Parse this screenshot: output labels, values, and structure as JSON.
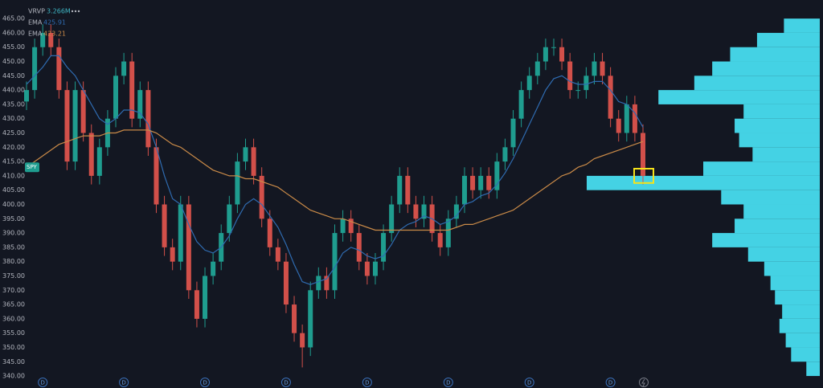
{
  "chart_data": {
    "type": "candlestick",
    "symbol": "SPY",
    "legend": [
      {
        "name": "VRVP",
        "value_label": "3.266M"
      },
      {
        "name": "EMA",
        "value_label": "425.91"
      },
      {
        "name": "EMA",
        "value_label": "423.21"
      }
    ],
    "up_color": "#1f9d8f",
    "down_color": "#d2504a",
    "ohlc": [
      [
        436,
        443,
        433,
        440
      ],
      [
        440,
        458,
        437,
        455
      ],
      [
        455,
        463,
        452,
        460
      ],
      [
        460,
        463,
        452,
        455
      ],
      [
        455,
        458,
        437,
        440
      ],
      [
        440,
        443,
        412,
        415
      ],
      [
        415,
        443,
        412,
        440
      ],
      [
        440,
        443,
        422,
        425
      ],
      [
        425,
        428,
        407,
        410
      ],
      [
        410,
        423,
        407,
        420
      ],
      [
        420,
        433,
        417,
        430
      ],
      [
        430,
        448,
        427,
        445
      ],
      [
        445,
        453,
        442,
        450
      ],
      [
        450,
        453,
        427,
        430
      ],
      [
        430,
        443,
        427,
        440
      ],
      [
        440,
        443,
        417,
        420
      ],
      [
        420,
        423,
        397,
        400
      ],
      [
        400,
        403,
        382,
        385
      ],
      [
        385,
        388,
        377,
        380
      ],
      [
        380,
        403,
        377,
        400
      ],
      [
        400,
        403,
        367,
        370
      ],
      [
        370,
        373,
        357,
        360
      ],
      [
        360,
        378,
        357,
        375
      ],
      [
        375,
        383,
        372,
        380
      ],
      [
        380,
        393,
        377,
        390
      ],
      [
        390,
        403,
        387,
        400
      ],
      [
        400,
        418,
        397,
        415
      ],
      [
        415,
        423,
        412,
        420
      ],
      [
        420,
        423,
        407,
        410
      ],
      [
        410,
        413,
        392,
        395
      ],
      [
        395,
        398,
        382,
        385
      ],
      [
        385,
        388,
        377,
        380
      ],
      [
        380,
        383,
        362,
        365
      ],
      [
        365,
        368,
        352,
        355
      ],
      [
        355,
        358,
        343,
        350
      ],
      [
        350,
        373,
        347,
        370
      ],
      [
        370,
        378,
        367,
        375
      ],
      [
        375,
        378,
        367,
        370
      ],
      [
        370,
        393,
        367,
        390
      ],
      [
        390,
        398,
        387,
        395
      ],
      [
        395,
        398,
        387,
        390
      ],
      [
        390,
        393,
        377,
        380
      ],
      [
        380,
        383,
        372,
        375
      ],
      [
        375,
        383,
        372,
        380
      ],
      [
        380,
        393,
        377,
        390
      ],
      [
        390,
        403,
        387,
        400
      ],
      [
        400,
        413,
        397,
        410
      ],
      [
        410,
        413,
        397,
        400
      ],
      [
        400,
        403,
        392,
        395
      ],
      [
        395,
        403,
        392,
        400
      ],
      [
        400,
        403,
        387,
        390
      ],
      [
        390,
        393,
        382,
        385
      ],
      [
        385,
        398,
        382,
        395
      ],
      [
        395,
        403,
        392,
        400
      ],
      [
        400,
        413,
        397,
        410
      ],
      [
        410,
        413,
        402,
        405
      ],
      [
        405,
        413,
        402,
        410
      ],
      [
        410,
        413,
        402,
        405
      ],
      [
        405,
        418,
        402,
        415
      ],
      [
        415,
        423,
        412,
        420
      ],
      [
        420,
        433,
        417,
        430
      ],
      [
        430,
        443,
        427,
        440
      ],
      [
        440,
        448,
        437,
        445
      ],
      [
        445,
        453,
        442,
        450
      ],
      [
        450,
        458,
        447,
        455
      ],
      [
        455,
        458,
        452,
        455
      ],
      [
        455,
        458,
        447,
        450
      ],
      [
        450,
        453,
        437,
        440
      ],
      [
        440,
        443,
        437,
        440
      ],
      [
        440,
        448,
        437,
        445
      ],
      [
        445,
        453,
        442,
        450
      ],
      [
        450,
        453,
        442,
        445
      ],
      [
        445,
        448,
        427,
        430
      ],
      [
        430,
        433,
        422,
        425
      ],
      [
        425,
        438,
        422,
        435
      ],
      [
        435,
        438,
        422,
        425
      ],
      [
        425,
        428,
        407,
        410
      ]
    ],
    "series": [
      {
        "name": "EMA",
        "color": "#2f6bb0",
        "values": [
          442,
          445,
          448,
          452,
          452,
          448,
          445,
          440,
          435,
          430,
          428,
          430,
          433,
          433,
          432,
          428,
          420,
          410,
          402,
          400,
          393,
          387,
          384,
          383,
          385,
          389,
          395,
          400,
          402,
          400,
          396,
          392,
          386,
          379,
          373,
          372,
          373,
          374,
          378,
          383,
          385,
          384,
          382,
          381,
          382,
          386,
          391,
          393,
          394,
          396,
          395,
          393,
          394,
          396,
          400,
          401,
          403,
          404,
          407,
          411,
          416,
          422,
          428,
          434,
          440,
          444,
          445,
          443,
          442,
          442,
          443,
          443,
          440,
          436,
          435,
          432,
          427
        ]
      },
      {
        "name": "EMA",
        "color": "#c98a48",
        "values": [
          413,
          415,
          417,
          419,
          421,
          422,
          423,
          424,
          424,
          424,
          425,
          425,
          426,
          426,
          426,
          426,
          425,
          423,
          421,
          420,
          418,
          416,
          414,
          412,
          411,
          410,
          410,
          409,
          409,
          408,
          407,
          406,
          404,
          402,
          400,
          398,
          397,
          396,
          395,
          395,
          394,
          393,
          392,
          391,
          391,
          391,
          391,
          391,
          391,
          391,
          391,
          391,
          391,
          392,
          393,
          393,
          394,
          395,
          396,
          397,
          398,
          400,
          402,
          404,
          406,
          408,
          410,
          411,
          413,
          414,
          416,
          417,
          418,
          419,
          420,
          421,
          422
        ]
      }
    ],
    "volume_profile": {
      "color": "#44d2e4",
      "bins": [
        340,
        345,
        350,
        355,
        360,
        365,
        370,
        375,
        380,
        385,
        390,
        395,
        400,
        405,
        410,
        415,
        420,
        425,
        430,
        435,
        440,
        445,
        450,
        455,
        460,
        465
      ],
      "values": [
        15,
        32,
        38,
        45,
        42,
        50,
        55,
        62,
        80,
        120,
        95,
        85,
        110,
        260,
        130,
        75,
        90,
        95,
        85,
        180,
        140,
        120,
        100,
        70,
        40
      ]
    },
    "dividends": {
      "label": "D",
      "at": [
        2,
        12,
        22,
        32,
        42,
        52,
        62,
        72
      ]
    },
    "highlight": {
      "index": 76,
      "low": 407.5,
      "high": 412.5,
      "color": "#f5e31a"
    },
    "ylim": [
      335.8,
      471.5
    ],
    "yticks": [
      {
        "value": 340,
        "label": "340.00"
      },
      {
        "value": 345,
        "label": "345.00"
      },
      {
        "value": 350,
        "label": "350.00"
      },
      {
        "value": 355,
        "label": "355.00"
      },
      {
        "value": 360,
        "label": "360.00"
      },
      {
        "value": 365,
        "label": "365.00"
      },
      {
        "value": 370,
        "label": "370.00"
      },
      {
        "value": 375,
        "label": "375.00"
      },
      {
        "value": 380,
        "label": "380.00"
      },
      {
        "value": 385,
        "label": "385.00"
      },
      {
        "value": 390,
        "label": "390.00"
      },
      {
        "value": 395,
        "label": "395.00"
      },
      {
        "value": 400,
        "label": "400.00"
      },
      {
        "value": 405,
        "label": "405.00"
      },
      {
        "value": 410,
        "label": "410.00"
      },
      {
        "value": 415,
        "label": "415.00"
      },
      {
        "value": 420,
        "label": "420.00"
      },
      {
        "value": 425,
        "label": "425.00"
      },
      {
        "value": 430,
        "label": "430.00"
      },
      {
        "value": 435,
        "label": "435.00"
      },
      {
        "value": 440,
        "label": "440.00"
      },
      {
        "value": 445,
        "label": "445.00"
      },
      {
        "value": 450,
        "label": "450.00"
      },
      {
        "value": 455,
        "label": "455.00"
      },
      {
        "value": 460,
        "label": "460.00"
      },
      {
        "value": 465,
        "label": "465.00"
      }
    ]
  }
}
